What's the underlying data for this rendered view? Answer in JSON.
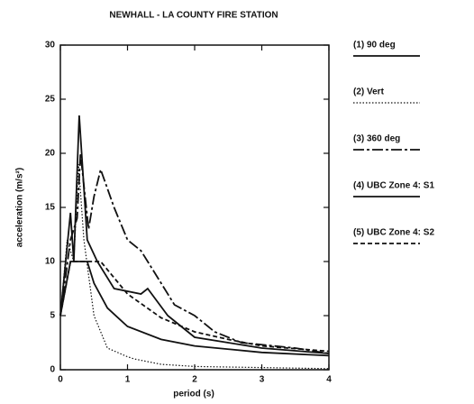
{
  "chart_data": {
    "type": "line",
    "title": "NEWHALL - LA COUNTY FIRE STATION",
    "xlabel": "period (s)",
    "ylabel": "acceleration (m/s²)",
    "xlim": [
      0,
      4
    ],
    "xticks": [
      0,
      1,
      2,
      3,
      4
    ],
    "ylim": [
      0,
      30
    ],
    "yticks": [
      0,
      5,
      10,
      15,
      20,
      25,
      30
    ],
    "legend": "right",
    "series": [
      {
        "name": "(1) 90 deg",
        "color": "#111111",
        "style": "solid",
        "x": [
          0,
          0.15,
          0.2,
          0.28,
          0.4,
          0.55,
          0.8,
          1.2,
          1.3,
          1.6,
          1.8,
          2.0,
          2.5,
          3,
          4
        ],
        "values": [
          5,
          14.5,
          10,
          23.5,
          12,
          10,
          7.5,
          7,
          7.5,
          5,
          4,
          3,
          2.5,
          2,
          1.5
        ]
      },
      {
        "name": "(2) Vert",
        "color": "#111111",
        "style": "dotted",
        "x": [
          0,
          0.1,
          0.2,
          0.27,
          0.35,
          0.5,
          0.7,
          1,
          1.1,
          1.5,
          2,
          3,
          4
        ],
        "values": [
          5,
          12,
          10,
          19,
          12,
          5,
          2,
          1.2,
          1,
          0.5,
          0.3,
          0.2,
          0.1
        ]
      },
      {
        "name": "(3) 360 deg",
        "color": "#111111",
        "style": "dashdot",
        "x": [
          0,
          0.15,
          0.25,
          0.3,
          0.42,
          0.5,
          0.6,
          0.8,
          1.0,
          1.2,
          1.3,
          1.5,
          1.7,
          2.0,
          2.3,
          2.7,
          3.5,
          4
        ],
        "values": [
          5,
          12,
          14,
          20,
          13,
          16,
          18.5,
          15,
          12,
          11,
          10,
          8,
          6,
          5,
          3.5,
          2.5,
          2,
          1.5
        ]
      },
      {
        "name": "(4) UBC Zone 4: S1",
        "color": "#111111",
        "style": "solid",
        "x": [
          0,
          0.15,
          0.4,
          0.5,
          0.7,
          1,
          1.5,
          2,
          3,
          4
        ],
        "values": [
          5,
          10,
          10,
          8,
          5.7,
          4,
          2.8,
          2.2,
          1.6,
          1.3
        ]
      },
      {
        "name": "(5) UBC Zone 4: S2",
        "color": "#111111",
        "style": "dashed",
        "x": [
          0,
          0.15,
          0.6,
          0.8,
          1,
          1.5,
          2,
          2.5,
          3,
          4
        ],
        "values": [
          5,
          10,
          10,
          8.5,
          7,
          4.8,
          3.5,
          2.8,
          2.2,
          1.7
        ]
      }
    ]
  }
}
